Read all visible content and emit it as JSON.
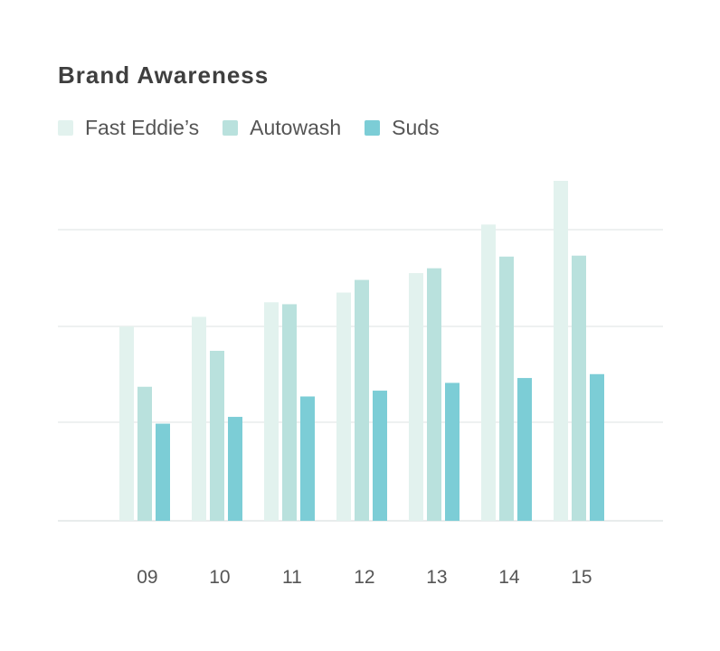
{
  "chart_data": {
    "type": "bar",
    "title": "Brand Awareness",
    "xlabel": "",
    "ylabel": "",
    "categories": [
      " 09",
      " 10",
      " 11",
      " 12",
      " 13",
      " 14",
      " 15"
    ],
    "series": [
      {
        "name": "Fast Eddie’s",
        "color": "#e2f2ee",
        "values": [
          2.0,
          2.1,
          2.25,
          2.35,
          2.55,
          3.05,
          3.5
        ]
      },
      {
        "name": "Autowash",
        "color": "#b9e1dd",
        "values": [
          1.38,
          1.75,
          2.23,
          2.48,
          2.6,
          2.72,
          2.73
        ]
      },
      {
        "name": "Suds",
        "color": "#7ccdd6",
        "values": [
          1.0,
          1.07,
          1.28,
          1.34,
          1.42,
          1.47,
          1.51
        ]
      }
    ],
    "ylim": [
      0,
      3.5
    ],
    "grid": true,
    "legend_position": "top-left"
  }
}
